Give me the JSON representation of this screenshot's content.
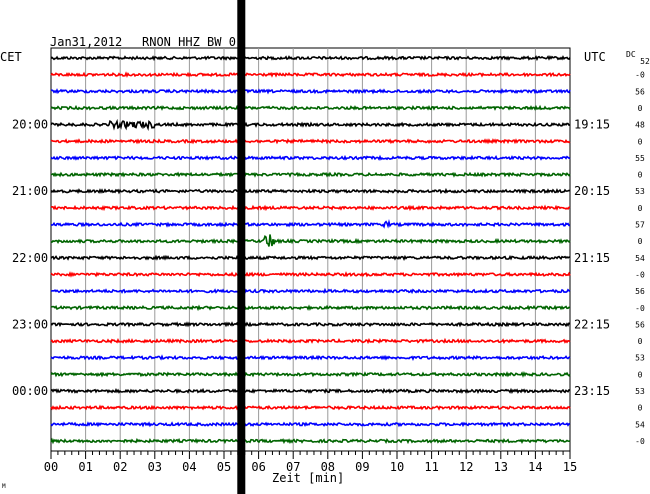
{
  "header": {
    "date": "Jan31,2012",
    "station": "RNON HHZ BW 0",
    "left_tz": "CET",
    "right_tz": "UTC",
    "dc_label": "DC"
  },
  "footer": {
    "xlabel": "Zeit [min]",
    "corner_mark": "M"
  },
  "chart_data": {
    "type": "line",
    "title": "Jan31,2012 RNON HHZ BW 0",
    "xlabel": "Zeit [min]",
    "x_ticks": [
      "00",
      "01",
      "02",
      "03",
      "04",
      "05",
      "06",
      "07",
      "08",
      "09",
      "10",
      "11",
      "12",
      "13",
      "14",
      "15"
    ],
    "xlim": [
      0,
      15
    ],
    "trace_count": 24,
    "trace_colors": [
      "#000000",
      "#ff0000",
      "#0000ff",
      "#006400"
    ],
    "left_time_labels": [
      {
        "trace": 4,
        "label": "20:00"
      },
      {
        "trace": 8,
        "label": "21:00"
      },
      {
        "trace": 12,
        "label": "22:00"
      },
      {
        "trace": 16,
        "label": "23:00"
      },
      {
        "trace": 20,
        "label": "00:00"
      }
    ],
    "right_time_labels": [
      {
        "trace": 4,
        "label": "19:15"
      },
      {
        "trace": 8,
        "label": "20:15"
      },
      {
        "trace": 12,
        "label": "21:15"
      },
      {
        "trace": 16,
        "label": "22:15"
      },
      {
        "trace": 20,
        "label": "23:15"
      }
    ],
    "dc_values": [
      "52",
      "-0",
      "56",
      "0",
      "48",
      "0",
      "55",
      "0",
      "53",
      "0",
      "57",
      "0",
      "54",
      "-0",
      "56",
      "-0",
      "56",
      "0",
      "53",
      "0",
      "53",
      "0",
      "54",
      "-0"
    ],
    "events": [
      {
        "trace": 4,
        "start_min": 1.7,
        "end_min": 3.0,
        "note": "noise burst"
      },
      {
        "trace": 11,
        "start_min": 6.1,
        "end_min": 6.5,
        "note": "spike"
      },
      {
        "trace": 10,
        "start_min": 9.6,
        "end_min": 9.8,
        "note": "small spike"
      }
    ],
    "marker_min": 5.5,
    "grid": true
  }
}
